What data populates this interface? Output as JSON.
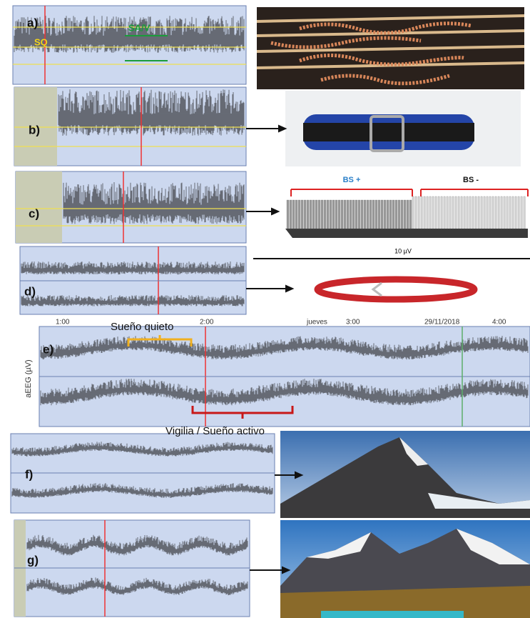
{
  "panels": {
    "a": {
      "label": "a)",
      "sav": "SA/V",
      "sq": "SQ"
    },
    "b": {
      "label": "b)"
    },
    "c": {
      "label": "c)"
    },
    "d": {
      "label": "d)"
    },
    "e": {
      "label": "e)",
      "quiet": "Sueño quieto",
      "active": "Vigilia / Sueño activo",
      "axis": "aEEG (µV)",
      "day": "jueves",
      "date": "29/11/2018",
      "times": [
        "1:00",
        "2:00",
        "3:00",
        "4:00"
      ]
    },
    "f": {
      "label": "f)"
    },
    "g": {
      "label": "g)"
    }
  },
  "comb": {
    "plus": "BS +",
    "minus": "BS -"
  },
  "scale": "10 µV"
}
